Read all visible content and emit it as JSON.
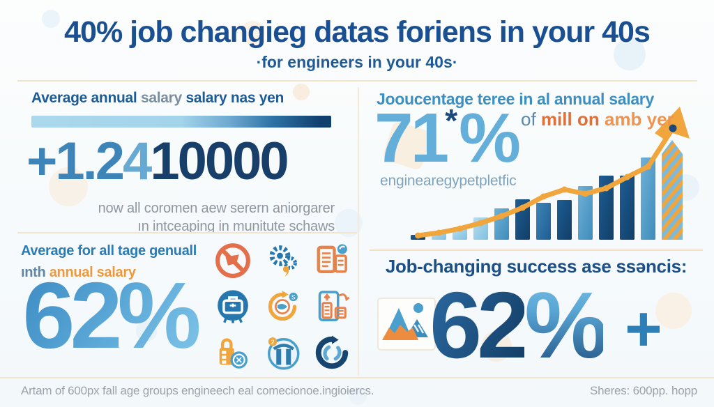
{
  "header": {
    "title": "40% job changieg datas foriens in your 40s",
    "subtitle": "·for engineers in your 40s·"
  },
  "left_top": {
    "heading_part1": "Average annual",
    "heading_part2": "salary",
    "heading_part3": "salary nas yen",
    "amount_main": "+1.2",
    "amount_mid": "4",
    "amount_tail": "10000",
    "note_line1": "now all coromen aew serern aniorgarer",
    "note_line2": "ın intceaping in munitute schaws"
  },
  "left_bottom": {
    "heading_line1": "Average for all tage genuall",
    "heading_line2_prefix": "ınth",
    "heading_line2_accent": "annual salary",
    "percent_digits": "62",
    "percent_sign": "%"
  },
  "right_top": {
    "heading": "Jooucentage teree in al annual salary",
    "percent_digits": "71",
    "asterisk": "*",
    "percent_sign": "%",
    "caption": "enginearegypetpletfic",
    "of_label": "of",
    "accent_bold": "mill on",
    "accent_light": "amb yer"
  },
  "right_bottom": {
    "heading": "Job-changing success ase ssəncis:",
    "percent_digits": "62",
    "percent_sign": "%",
    "plus": "+"
  },
  "footer": {
    "left": "Artam of 600px fall age groups engineech eal comecionoe.ingioiercs.",
    "right": "Sheres: 600pp. hopp"
  },
  "icons": [
    {
      "name": "no-entry-icon",
      "color": "#e3704a"
    },
    {
      "name": "gears-icon",
      "color": "#2577ad"
    },
    {
      "name": "documents-icon",
      "color": "#e8824b"
    },
    {
      "name": "briefcase-icon",
      "color": "#2577ad"
    },
    {
      "name": "globe-sync-icon",
      "color": "#f0a63c"
    },
    {
      "name": "file-transfer-icon",
      "color": "#e8824b"
    },
    {
      "name": "lock-coin-icon",
      "color": "#f0a63c"
    },
    {
      "name": "gate-icon",
      "color": "#2e7cab"
    },
    {
      "name": "currency-cycle-icon",
      "color": "#16456f"
    },
    {
      "name": "mountain-chart-icon",
      "color": "#3c8cbd"
    }
  ],
  "colors": {
    "navy": "#1b4f86",
    "blue": "#2e7fb5",
    "light_blue": "#64aeda",
    "sky": "#8ec7e4",
    "orange": "#f0993c",
    "orange_deep": "#e0703a",
    "gray_text": "#8e959e",
    "divider": "#f2e4cb",
    "background": "#f8fbfd"
  },
  "chart_data": {
    "type": "bar",
    "title": "",
    "xlabel": "",
    "ylabel": "",
    "categories": [
      "",
      "",
      "",
      "",
      "",
      "",
      "",
      "",
      "",
      "",
      "",
      ""
    ],
    "values": [
      7,
      12,
      16,
      32,
      45,
      58,
      53,
      57,
      77,
      92,
      92,
      118
    ],
    "bar_styles": [
      "dark",
      "light",
      "light",
      "light",
      "sky",
      "dark",
      "mid",
      "dark",
      "sky",
      "dark",
      "dark",
      "sky"
    ],
    "line_overlay": [
      6,
      10,
      16,
      24,
      34,
      46,
      62,
      72,
      66,
      74,
      90,
      105
    ],
    "line_tip": 160,
    "ylim": [
      0,
      170
    ],
    "grid": false,
    "legend": false,
    "axes_labels_visible": false,
    "notes": "Decorative rising-trend bar chart with orange line overlay ending in upward arrow with striped arrow column",
    "colors": {
      "line": "#f0a63c",
      "bar_light": "#8ec7e4",
      "bar_mid": "#2e76a8",
      "bar_dark": "#16456f",
      "stripe_alt": "#7db9da"
    }
  }
}
